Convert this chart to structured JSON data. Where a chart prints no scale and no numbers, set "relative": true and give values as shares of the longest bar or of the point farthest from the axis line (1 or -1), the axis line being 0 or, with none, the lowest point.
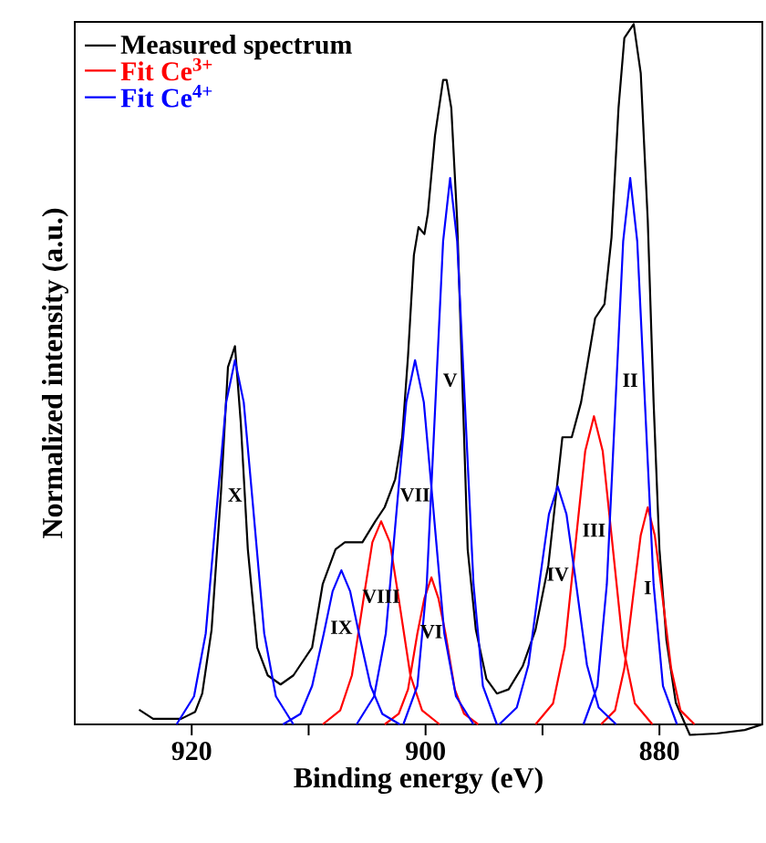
{
  "chart_data": {
    "type": "line",
    "xlabel": "Binding energy (eV)",
    "ylabel": "Normalized intensity (a.u.)",
    "relative": true,
    "xlim": [
      930,
      871.2
    ],
    "xticks": [
      920,
      {
        "value": 910,
        "label": null
      },
      900,
      {
        "value": 890,
        "label": null
      },
      880
    ],
    "legend": "top left",
    "series": [
      {
        "name": "Measured spectrum",
        "color": "#000000",
        "x": [
          924.5,
          923.3,
          920.9,
          919.7,
          919.1,
          918.3,
          917.5,
          916.9,
          916.3,
          915.8,
          915.2,
          914.4,
          913.5,
          912.4,
          911.3,
          909.7,
          908.8,
          907.7,
          906.9,
          905.4,
          904.3,
          903.5,
          902.6,
          902.0,
          901.5,
          901.0,
          900.6,
          900.1,
          899.8,
          899.2,
          898.5,
          898.2,
          897.8,
          897.3,
          896.8,
          896.4,
          895.7,
          894.8,
          893.9,
          892.9,
          891.7,
          890.6,
          889.5,
          888.3,
          887.5,
          886.7,
          885.5,
          884.7,
          884.1,
          883.5,
          883.0,
          882.2,
          881.6,
          881.0,
          880.5,
          880.0,
          879.4,
          878.6,
          877.4,
          875.1,
          872.7,
          871.2
        ],
        "values": [
          0.021,
          0.008,
          0.008,
          0.018,
          0.044,
          0.135,
          0.33,
          0.51,
          0.54,
          0.43,
          0.25,
          0.11,
          0.07,
          0.057,
          0.07,
          0.11,
          0.2,
          0.25,
          0.26,
          0.26,
          0.29,
          0.31,
          0.35,
          0.41,
          0.526,
          0.67,
          0.71,
          0.7,
          0.73,
          0.84,
          0.92,
          0.92,
          0.88,
          0.72,
          0.46,
          0.25,
          0.135,
          0.065,
          0.044,
          0.05,
          0.083,
          0.135,
          0.227,
          0.41,
          0.41,
          0.46,
          0.58,
          0.6,
          0.695,
          0.88,
          0.98,
          1.0,
          0.93,
          0.72,
          0.46,
          0.25,
          0.12,
          0.031,
          -0.015,
          -0.013,
          -0.008,
          0
        ]
      },
      {
        "name": "Fit Ce$^{3+}$",
        "color": "#ff0000",
        "x": [
          908.8,
          907.3,
          906.3,
          905.3,
          904.55,
          903.8,
          903.05,
          902.3,
          901.3,
          900.3,
          898.8
        ],
        "values": [
          0,
          0.02,
          0.07,
          0.18,
          0.26,
          0.29,
          0.26,
          0.18,
          0.07,
          0.02,
          0
        ]
      },
      {
        "color": "#ff0000",
        "x": [
          903.5,
          902.3,
          901.5,
          900.7,
          900.1,
          899.5,
          898.9,
          898.3,
          897.5,
          896.7,
          895.5
        ],
        "values": [
          0,
          0.015,
          0.05,
          0.13,
          0.18,
          0.21,
          0.18,
          0.13,
          0.05,
          0.015,
          0
        ]
      },
      {
        "color": "#ff0000",
        "x": [
          890.6,
          889.1,
          888.1,
          887.1,
          886.35,
          885.6,
          884.85,
          884.1,
          883.1,
          882.1,
          880.6
        ],
        "values": [
          0,
          0.03,
          0.11,
          0.27,
          0.39,
          0.44,
          0.39,
          0.27,
          0.11,
          0.03,
          0
        ]
      },
      {
        "color": "#ff0000",
        "x": [
          885,
          883.8,
          883,
          882.2,
          881.6,
          881,
          880.4,
          879.8,
          879,
          878.2,
          877
        ],
        "values": [
          0,
          0.02,
          0.08,
          0.19,
          0.27,
          0.31,
          0.27,
          0.19,
          0.08,
          0.02,
          0
        ]
      },
      {
        "name": "Fit Ce$^{4+}$",
        "color": "#0000ff",
        "x": [
          921.3,
          919.8,
          918.8,
          917.8,
          917.05,
          916.3,
          915.55,
          914.8,
          913.8,
          912.8,
          911.3
        ],
        "values": [
          0,
          0.04,
          0.13,
          0.32,
          0.46,
          0.52,
          0.46,
          0.32,
          0.13,
          0.04,
          0
        ]
      },
      {
        "color": "#0000ff",
        "x": [
          912.2,
          910.7,
          909.7,
          908.7,
          907.95,
          907.2,
          906.45,
          905.7,
          904.7,
          903.7,
          902.2
        ],
        "values": [
          0,
          0.015,
          0.055,
          0.13,
          0.19,
          0.22,
          0.19,
          0.13,
          0.055,
          0.015,
          0
        ]
      },
      {
        "color": "#0000ff",
        "x": [
          905.9,
          904.4,
          903.4,
          902.4,
          901.65,
          900.9,
          900.15,
          899.4,
          898.4,
          897.4,
          895.9
        ],
        "values": [
          0,
          0.04,
          0.13,
          0.32,
          0.46,
          0.52,
          0.46,
          0.32,
          0.13,
          0.04,
          0
        ]
      },
      {
        "color": "#0000ff",
        "x": [
          901.9,
          900.7,
          899.9,
          899.1,
          898.5,
          897.9,
          897.3,
          896.7,
          895.9,
          895.1,
          893.9
        ],
        "values": [
          0,
          0.055,
          0.2,
          0.48,
          0.69,
          0.78,
          0.69,
          0.48,
          0.2,
          0.055,
          0
        ]
      },
      {
        "color": "#0000ff",
        "x": [
          893.7,
          892.2,
          891.2,
          890.2,
          889.45,
          888.7,
          887.95,
          887.2,
          886.2,
          885.2,
          883.7
        ],
        "values": [
          0,
          0.024,
          0.085,
          0.21,
          0.3,
          0.34,
          0.3,
          0.21,
          0.085,
          0.024,
          0
        ]
      },
      {
        "color": "#0000ff",
        "x": [
          886.5,
          885.3,
          884.5,
          883.7,
          883.1,
          882.5,
          881.9,
          881.3,
          880.5,
          879.7,
          878.5
        ],
        "values": [
          0,
          0.055,
          0.2,
          0.48,
          0.69,
          0.78,
          0.69,
          0.48,
          0.2,
          0.055,
          0
        ]
      }
    ],
    "annotations": [
      "I",
      "II",
      "III",
      "IV",
      "V",
      "VI",
      "VII",
      "VIII",
      "IX",
      "X"
    ]
  }
}
